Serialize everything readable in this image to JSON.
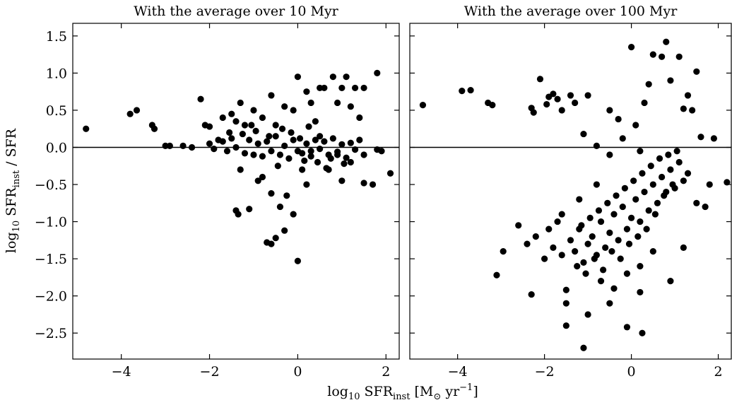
{
  "chart_data": [
    {
      "type": "scatter",
      "title": "With the average over 10 Myr",
      "color": "#000000",
      "hline": 0,
      "xlim": [
        -5.1,
        2.3
      ],
      "ylim": [
        -2.85,
        1.67
      ],
      "xticks": [
        {
          "value": -4,
          "label": "−4"
        },
        {
          "value": -2,
          "label": "−2"
        },
        0,
        2
      ],
      "yticks": [
        {
          "value": -2.5,
          "label": "−2.5"
        },
        {
          "value": -2,
          "label": "−2.0"
        },
        {
          "value": -1.5,
          "label": "−1.5"
        },
        {
          "value": -1,
          "label": "−1.0"
        },
        {
          "value": -0.5,
          "label": "−0.5"
        },
        {
          "value": 0,
          "label": "0.0"
        },
        0.5,
        {
          "value": 1,
          "label": "1.0"
        },
        1.5
      ],
      "x": [
        -4.8,
        -3.8,
        -3.65,
        -3.3,
        -3.25,
        -3.0,
        -2.9,
        -2.6,
        -2.4,
        -2.2,
        -2.1,
        -2.0,
        -1.8,
        -1.7,
        -1.5,
        -1.4,
        -1.3,
        -1.2,
        -1.0,
        -0.8,
        -0.6,
        -0.5,
        -0.3,
        -0.1,
        0.0,
        0.2,
        0.3,
        0.4,
        0.5,
        0.6,
        0.8,
        1.0,
        1.1,
        1.2,
        1.3,
        1.5,
        1.8,
        1.4,
        0.9,
        -1.4,
        -1.35,
        -1.1,
        -0.9,
        -0.8,
        -0.7,
        -0.6,
        -0.5,
        -0.4,
        -0.3,
        -0.25,
        -0.1,
        0.0,
        0.1,
        0.2,
        -0.6,
        -1.3,
        0.7,
        1.0,
        1.5,
        1.7,
        2.1,
        1.9,
        1.8,
        1.5,
        1.2,
        0.9,
        0.5,
        0.3,
        -2.0,
        -1.9,
        -1.7,
        -1.6,
        -1.5,
        -1.4,
        -1.2,
        -1.1,
        -1.0,
        -0.9,
        -0.8,
        -0.7,
        -0.6,
        -0.5,
        -0.4,
        -0.3,
        -0.2,
        -0.1,
        0.0,
        0.05,
        0.1,
        0.2,
        0.3,
        0.4,
        0.5,
        0.6,
        0.7,
        0.8,
        0.9,
        1.0,
        1.1,
        1.2,
        1.3,
        1.4,
        -1.55,
        -1.25,
        -0.95,
        -0.65,
        -0.35,
        -0.15,
        0.15,
        0.45,
        0.75,
        1.05,
        -0.45,
        0.25,
        -1.05,
        0.65
      ],
      "values": [
        0.25,
        0.45,
        0.5,
        0.3,
        0.25,
        0.02,
        0.02,
        0.02,
        0.0,
        0.65,
        0.3,
        0.28,
        0.1,
        0.4,
        0.45,
        0.35,
        0.6,
        0.3,
        0.5,
        0.4,
        0.7,
        0.3,
        0.55,
        0.5,
        0.95,
        0.75,
        0.6,
        0.35,
        0.8,
        0.8,
        0.95,
        0.8,
        0.95,
        0.55,
        0.8,
        0.8,
        1.0,
        0.4,
        0.6,
        -0.85,
        -0.9,
        -0.83,
        -0.45,
        -0.4,
        -1.28,
        -1.3,
        -1.22,
        -0.8,
        -1.12,
        -0.65,
        -0.9,
        -1.53,
        -0.3,
        -0.5,
        -0.62,
        -0.3,
        -0.3,
        -0.45,
        -0.48,
        -0.5,
        -0.35,
        -0.05,
        -0.03,
        -0.1,
        -0.2,
        -0.1,
        0.15,
        -0.05,
        0.05,
        -0.02,
        0.08,
        -0.05,
        0.12,
        0.0,
        -0.08,
        0.1,
        -0.1,
        0.05,
        -0.12,
        0.08,
        -0.05,
        0.15,
        -0.1,
        0.02,
        -0.15,
        0.1,
        -0.05,
        0.12,
        -0.08,
        0.05,
        -0.12,
        0.1,
        -0.02,
        0.08,
        -0.1,
        0.12,
        -0.06,
        0.04,
        -0.14,
        0.06,
        -0.03,
        0.1,
        0.2,
        0.18,
        0.22,
        0.15,
        0.25,
        0.2,
        -0.18,
        -0.2,
        -0.15,
        -0.22,
        -0.25,
        0.28,
        0.3,
        -0.28
      ]
    },
    {
      "type": "scatter",
      "title": "With the average over 100 Myr",
      "color": "#000000",
      "hline": 0,
      "xlim": [
        -5.1,
        2.3
      ],
      "ylim": [
        -2.85,
        1.67
      ],
      "xticks": [
        {
          "value": -4,
          "label": "−4"
        },
        {
          "value": -2,
          "label": "−2"
        },
        0,
        2
      ],
      "yticks": [
        -2.5,
        -2,
        -1.5,
        -1,
        -0.5,
        0,
        0.5,
        1,
        1.5
      ],
      "x": [
        -4.8,
        -3.9,
        -3.7,
        -3.3,
        -3.2,
        -2.3,
        -2.25,
        -2.1,
        -1.95,
        -1.9,
        -1.8,
        -1.7,
        -1.6,
        -1.4,
        -1.3,
        -1.1,
        -1.0,
        -0.5,
        -0.3,
        -0.2,
        0.0,
        0.1,
        0.3,
        0.4,
        0.5,
        0.7,
        0.8,
        0.9,
        1.1,
        1.2,
        1.3,
        1.4,
        1.5,
        1.6,
        1.9,
        2.2,
        -0.8,
        -0.5,
        0.2,
        -3.1,
        -2.95,
        -2.3,
        -1.5,
        -1.5,
        -1.5,
        -1.1,
        -0.5,
        -0.1,
        0.25,
        0.2,
        -1.0,
        0.9,
        1.2,
        1.5,
        1.8,
        1.7,
        -2.6,
        -2.4,
        -2.2,
        -2.0,
        -1.9,
        -1.8,
        -1.7,
        -1.6,
        -1.4,
        -1.3,
        -1.2,
        -1.1,
        -1.0,
        -0.9,
        -0.8,
        -0.7,
        -0.6,
        -0.5,
        -0.4,
        -0.3,
        -0.2,
        -0.1,
        0.0,
        0.1,
        0.2,
        0.3,
        0.4,
        0.5,
        0.6,
        0.7,
        0.8,
        0.9,
        1.0,
        1.1,
        1.2,
        1.3,
        -1.25,
        -1.05,
        -0.85,
        -0.65,
        -0.45,
        -0.25,
        -0.05,
        0.15,
        0.35,
        0.55,
        0.75,
        0.95,
        -1.15,
        -0.95,
        -0.75,
        -0.55,
        -0.35,
        -0.15,
        0.05,
        0.25,
        0.45,
        0.65,
        0.85,
        1.05,
        -0.7,
        -0.4,
        -0.1,
        0.2,
        0.5,
        -1.6,
        -1.2,
        -0.8
      ],
      "values": [
        0.57,
        0.76,
        0.77,
        0.6,
        0.57,
        0.53,
        0.47,
        0.92,
        0.58,
        0.68,
        0.72,
        0.65,
        0.5,
        0.7,
        0.6,
        0.18,
        0.7,
        0.5,
        0.38,
        0.12,
        1.35,
        0.3,
        0.6,
        0.85,
        1.25,
        1.22,
        1.42,
        0.9,
        1.22,
        0.52,
        0.7,
        0.5,
        1.02,
        0.14,
        0.12,
        -0.47,
        0.02,
        -0.1,
        -0.05,
        -1.72,
        -1.4,
        -1.98,
        -1.92,
        -2.1,
        -2.4,
        -2.7,
        -2.1,
        -2.42,
        -2.5,
        -1.95,
        -2.25,
        -1.8,
        -1.35,
        -0.75,
        -0.5,
        -0.8,
        -1.05,
        -1.3,
        -1.2,
        -1.5,
        -1.1,
        -1.35,
        -1.0,
        -1.45,
        -1.25,
        -1.4,
        -1.1,
        -1.55,
        -1.3,
        -1.2,
        -1.45,
        -1.0,
        -1.35,
        -1.15,
        -0.9,
        -1.25,
        -0.8,
        -1.1,
        -0.95,
        -0.7,
        -1.0,
        -0.6,
        -0.85,
        -0.5,
        -0.75,
        -0.4,
        -0.6,
        -0.3,
        -0.55,
        -0.2,
        -0.45,
        -0.35,
        -1.6,
        -1.7,
        -1.5,
        -1.65,
        -1.4,
        -1.5,
        -1.3,
        -1.2,
        -1.1,
        -0.9,
        -0.65,
        -0.5,
        -1.05,
        -0.95,
        -0.85,
        -0.75,
        -0.65,
        -0.55,
        -0.45,
        -0.35,
        -0.25,
        -0.15,
        -0.1,
        -0.05,
        -1.8,
        -1.9,
        -1.7,
        -1.6,
        -1.4,
        -0.9,
        -0.7,
        -0.5
      ]
    }
  ],
  "ylabel": [
    "log",
    "10",
    " SFR",
    "inst",
    " / SFR"
  ],
  "xlabel": [
    "log",
    "10",
    " SFR",
    "inst",
    " [M",
    "⊙",
    " yr",
    "−1",
    "]"
  ]
}
